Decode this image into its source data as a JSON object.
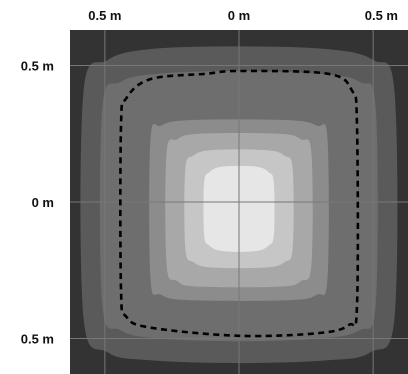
{
  "chart_data": {
    "type": "heatmap",
    "title": "",
    "xlabel": "",
    "ylabel": "",
    "x_ticks": [
      {
        "value": -0.5,
        "label": "0.5 m"
      },
      {
        "value": 0,
        "label": "0 m"
      },
      {
        "value": 0.5,
        "label": "0.5 m"
      }
    ],
    "y_ticks": [
      {
        "value": 0.5,
        "label": "0.5 m"
      },
      {
        "value": 0,
        "label": "0 m"
      },
      {
        "value": -0.5,
        "label": "0.5 m"
      }
    ],
    "xlim": [
      -0.63,
      0.63
    ],
    "ylim": [
      -0.63,
      0.63
    ],
    "grid": true,
    "background_color": "#333333",
    "grid_color": "#777777",
    "levels": [
      {
        "color": "#5a5a5a",
        "vertices": [
          [
            -0.58,
            -0.42
          ],
          [
            -0.58,
            0.4
          ],
          [
            -0.49,
            0.52
          ],
          [
            -0.33,
            0.56
          ],
          [
            0.0,
            0.57
          ],
          [
            0.33,
            0.56
          ],
          [
            0.5,
            0.52
          ],
          [
            0.58,
            0.4
          ],
          [
            0.58,
            -0.42
          ],
          [
            0.49,
            -0.55
          ],
          [
            0.33,
            -0.58
          ],
          [
            0.0,
            -0.59
          ],
          [
            -0.33,
            -0.58
          ],
          [
            -0.49,
            -0.55
          ]
        ]
      },
      {
        "color": "#6e6e6e",
        "vertices": [
          [
            -0.51,
            -0.37
          ],
          [
            -0.51,
            0.34
          ],
          [
            -0.44,
            0.44
          ],
          [
            -0.3,
            0.47
          ],
          [
            0.0,
            0.48
          ],
          [
            0.3,
            0.47
          ],
          [
            0.45,
            0.44
          ],
          [
            0.51,
            0.34
          ],
          [
            0.51,
            -0.37
          ],
          [
            0.45,
            -0.47
          ],
          [
            0.3,
            -0.5
          ],
          [
            0.0,
            -0.51
          ],
          [
            -0.3,
            -0.5
          ],
          [
            -0.44,
            -0.47
          ]
        ]
      },
      {
        "color": "#8c8c8c",
        "vertices": [
          [
            -0.33,
            -0.28
          ],
          [
            -0.33,
            0.23
          ],
          [
            -0.29,
            0.28
          ],
          [
            -0.18,
            0.3
          ],
          [
            0.18,
            0.3
          ],
          [
            0.29,
            0.28
          ],
          [
            0.33,
            0.23
          ],
          [
            0.33,
            -0.28
          ],
          [
            0.29,
            -0.34
          ],
          [
            0.18,
            -0.36
          ],
          [
            -0.18,
            -0.36
          ],
          [
            -0.29,
            -0.34
          ]
        ]
      },
      {
        "color": "#a8a8a8",
        "vertices": [
          [
            -0.27,
            -0.23
          ],
          [
            -0.27,
            0.18
          ],
          [
            -0.23,
            0.23
          ],
          [
            -0.15,
            0.25
          ],
          [
            0.15,
            0.25
          ],
          [
            0.23,
            0.23
          ],
          [
            0.27,
            0.18
          ],
          [
            0.27,
            -0.23
          ],
          [
            0.23,
            -0.29
          ],
          [
            0.15,
            -0.31
          ],
          [
            -0.15,
            -0.31
          ],
          [
            -0.23,
            -0.29
          ]
        ]
      },
      {
        "color": "#c6c6c6",
        "vertices": [
          [
            -0.2,
            -0.17
          ],
          [
            -0.2,
            0.12
          ],
          [
            -0.17,
            0.17
          ],
          [
            -0.1,
            0.19
          ],
          [
            0.1,
            0.19
          ],
          [
            0.17,
            0.17
          ],
          [
            0.2,
            0.12
          ],
          [
            0.2,
            -0.17
          ],
          [
            0.17,
            -0.22
          ],
          [
            0.1,
            -0.24
          ],
          [
            -0.1,
            -0.24
          ],
          [
            -0.17,
            -0.22
          ]
        ]
      },
      {
        "color": "#e6e6e6",
        "vertices": [
          [
            -0.13,
            -0.12
          ],
          [
            -0.13,
            0.07
          ],
          [
            -0.11,
            0.11
          ],
          [
            -0.06,
            0.13
          ],
          [
            0.06,
            0.13
          ],
          [
            0.11,
            0.11
          ],
          [
            0.13,
            0.07
          ],
          [
            0.13,
            -0.12
          ],
          [
            0.11,
            -0.16
          ],
          [
            0.06,
            -0.18
          ],
          [
            -0.06,
            -0.18
          ],
          [
            -0.11,
            -0.16
          ]
        ]
      }
    ],
    "boundary": {
      "style": "dashed",
      "color": "#000000",
      "vertices": [
        [
          -0.44,
          -0.32
        ],
        [
          -0.44,
          0.28
        ],
        [
          -0.42,
          0.38
        ],
        [
          -0.33,
          0.45
        ],
        [
          -0.12,
          0.47
        ],
        [
          0.0,
          0.48
        ],
        [
          0.33,
          0.47
        ],
        [
          0.42,
          0.41
        ],
        [
          0.44,
          0.28
        ],
        [
          0.44,
          -0.38
        ],
        [
          0.41,
          -0.45
        ],
        [
          0.3,
          -0.48
        ],
        [
          0.0,
          -0.49
        ],
        [
          -0.33,
          -0.46
        ],
        [
          -0.42,
          -0.42
        ]
      ]
    }
  }
}
